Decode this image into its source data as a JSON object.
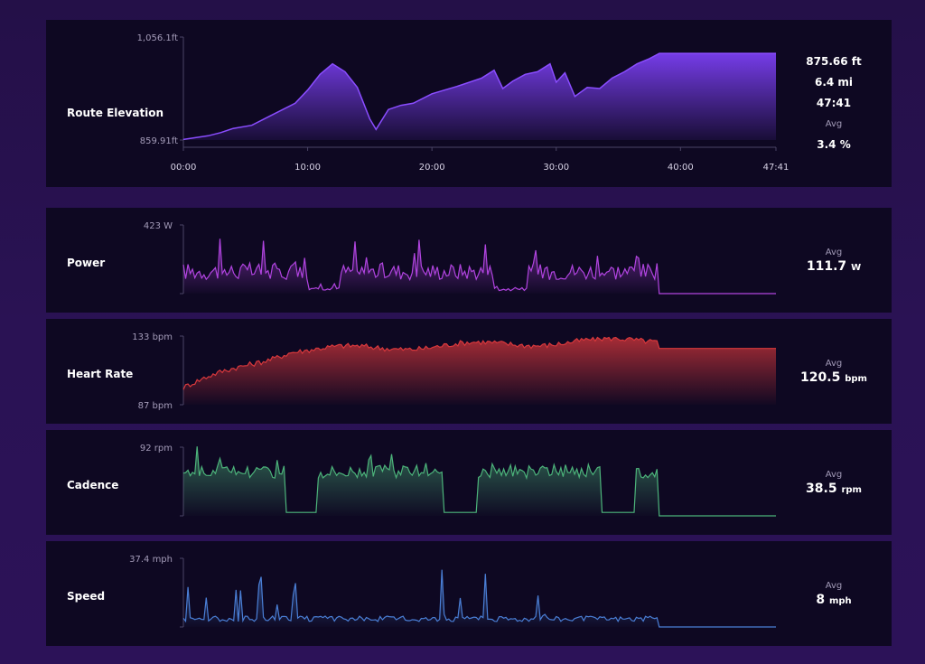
{
  "elevation": {
    "title": "Route Elevation",
    "y_max_label": "1,056.1ft",
    "y_min_label": "859.91ft",
    "x_ticks": [
      "00:00",
      "10:00",
      "20:00",
      "30:00",
      "40:00",
      "47:41"
    ],
    "stats": [
      "875.66 ft",
      "6.4 mi",
      "47:41"
    ],
    "avg_label": "Avg",
    "avg_value": "3.4 %"
  },
  "metrics": [
    {
      "key": "power",
      "title": "Power",
      "y_max_label": "423 W",
      "y_min_label": "",
      "avg_label": "Avg",
      "avg_value": "111.7",
      "avg_unit": "W"
    },
    {
      "key": "heart",
      "title": "Heart Rate",
      "y_max_label": "133 bpm",
      "y_min_label": "87 bpm",
      "avg_label": "Avg",
      "avg_value": "120.5",
      "avg_unit": "bpm"
    },
    {
      "key": "cadence",
      "title": "Cadence",
      "y_max_label": "92 rpm",
      "y_min_label": "",
      "avg_label": "Avg",
      "avg_value": "38.5",
      "avg_unit": "rpm"
    },
    {
      "key": "speed",
      "title": "Speed",
      "y_max_label": "37.4 mph",
      "y_min_label": "",
      "avg_label": "Avg",
      "avg_value": "8",
      "avg_unit": "mph"
    }
  ],
  "colors": {
    "elevation": "#7b3ff2",
    "power": "#b144e0",
    "heart": "#d8383c",
    "cadence": "#4cb37a",
    "speed": "#4a7fd6",
    "panel": "#0e0822",
    "axis": "#4b4566",
    "tick_text": "#a39bb8"
  },
  "chart_data": [
    {
      "type": "area",
      "title": "Route Elevation",
      "xlabel": "",
      "ylabel": "",
      "xlim_min": [
        0,
        47.68
      ],
      "ylim": [
        859.91,
        1056.1
      ],
      "x": [
        0,
        2,
        3,
        4,
        5.5,
        7,
        9,
        10,
        11,
        12,
        13,
        14,
        15,
        15.5,
        16.5,
        17.5,
        18.5,
        20,
        22,
        24,
        25,
        25.7,
        26.5,
        27.5,
        28.5,
        29.5,
        30,
        30.7,
        31.5,
        32.5,
        33.5,
        34.5,
        35.5,
        36.5,
        37.5,
        38.3,
        47.68
      ],
      "y": [
        861,
        868,
        874,
        882,
        888,
        906,
        930,
        955,
        985,
        1005,
        990,
        960,
        900,
        880,
        918,
        926,
        930,
        948,
        962,
        978,
        993,
        958,
        972,
        985,
        990,
        1005,
        970,
        988,
        943,
        960,
        958,
        978,
        990,
        1005,
        1015,
        1025,
        1025
      ]
    },
    {
      "type": "area",
      "title": "Power",
      "xlim_min": [
        0,
        47.68
      ],
      "ylim": [
        0,
        423
      ],
      "series": [
        {
          "name": "Power",
          "avg": 111.7
        }
      ]
    },
    {
      "type": "area",
      "title": "Heart Rate",
      "xlim_min": [
        0,
        47.68
      ],
      "ylim": [
        87,
        133
      ],
      "series": [
        {
          "name": "Heart Rate",
          "avg": 120.5
        }
      ]
    },
    {
      "type": "area",
      "title": "Cadence",
      "xlim_min": [
        0,
        47.68
      ],
      "ylim": [
        0,
        92
      ],
      "series": [
        {
          "name": "Cadence",
          "avg": 38.5
        }
      ]
    },
    {
      "type": "area",
      "title": "Speed",
      "xlim_min": [
        0,
        47.68
      ],
      "ylim": [
        0,
        37.4
      ],
      "series": [
        {
          "name": "Speed",
          "avg": 8
        }
      ]
    }
  ]
}
